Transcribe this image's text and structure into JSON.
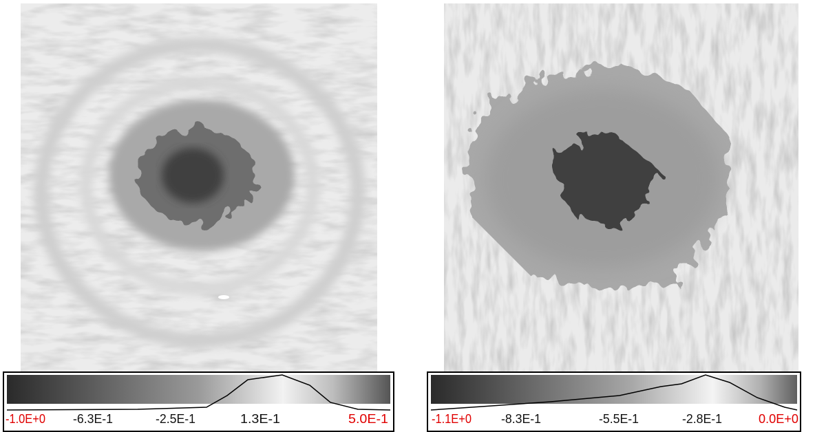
{
  "panels": [
    {
      "colorbar": {
        "ticks": [
          "-1.0E+0",
          "-6.3E-1",
          "-2.5E-1",
          "1.3E-1",
          "5.0E-1"
        ]
      }
    },
    {
      "colorbar": {
        "ticks": [
          "-1.1E+0",
          "-8.3E-1",
          "-5.5E-1",
          "-2.8E-1",
          "0.0E+0"
        ]
      }
    }
  ]
}
